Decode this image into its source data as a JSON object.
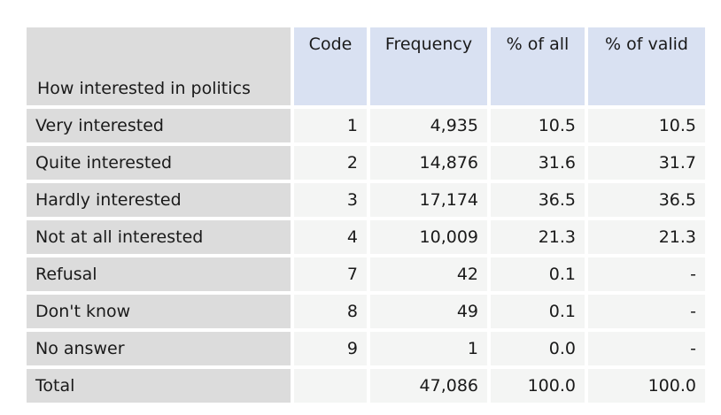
{
  "table": {
    "row_header_title": "How interested in politics",
    "columns": [
      "Code",
      "Frequency",
      "% of all",
      "% of valid"
    ],
    "rows": [
      {
        "label": "Very interested",
        "code": "1",
        "frequency": "4,935",
        "pct_all": "10.5",
        "pct_valid": "10.5"
      },
      {
        "label": "Quite interested",
        "code": "2",
        "frequency": "14,876",
        "pct_all": "31.6",
        "pct_valid": "31.7"
      },
      {
        "label": "Hardly interested",
        "code": "3",
        "frequency": "17,174",
        "pct_all": "36.5",
        "pct_valid": "36.5"
      },
      {
        "label": "Not at all interested",
        "code": "4",
        "frequency": "10,009",
        "pct_all": "21.3",
        "pct_valid": "21.3"
      },
      {
        "label": "Refusal",
        "code": "7",
        "frequency": "42",
        "pct_all": "0.1",
        "pct_valid": "-"
      },
      {
        "label": "Don't know",
        "code": "8",
        "frequency": "49",
        "pct_all": "0.1",
        "pct_valid": "-"
      },
      {
        "label": "No answer",
        "code": "9",
        "frequency": "1",
        "pct_all": "0.0",
        "pct_valid": "-"
      },
      {
        "label": "Total",
        "code": "",
        "frequency": "47,086",
        "pct_all": "100.0",
        "pct_valid": "100.0"
      }
    ]
  }
}
